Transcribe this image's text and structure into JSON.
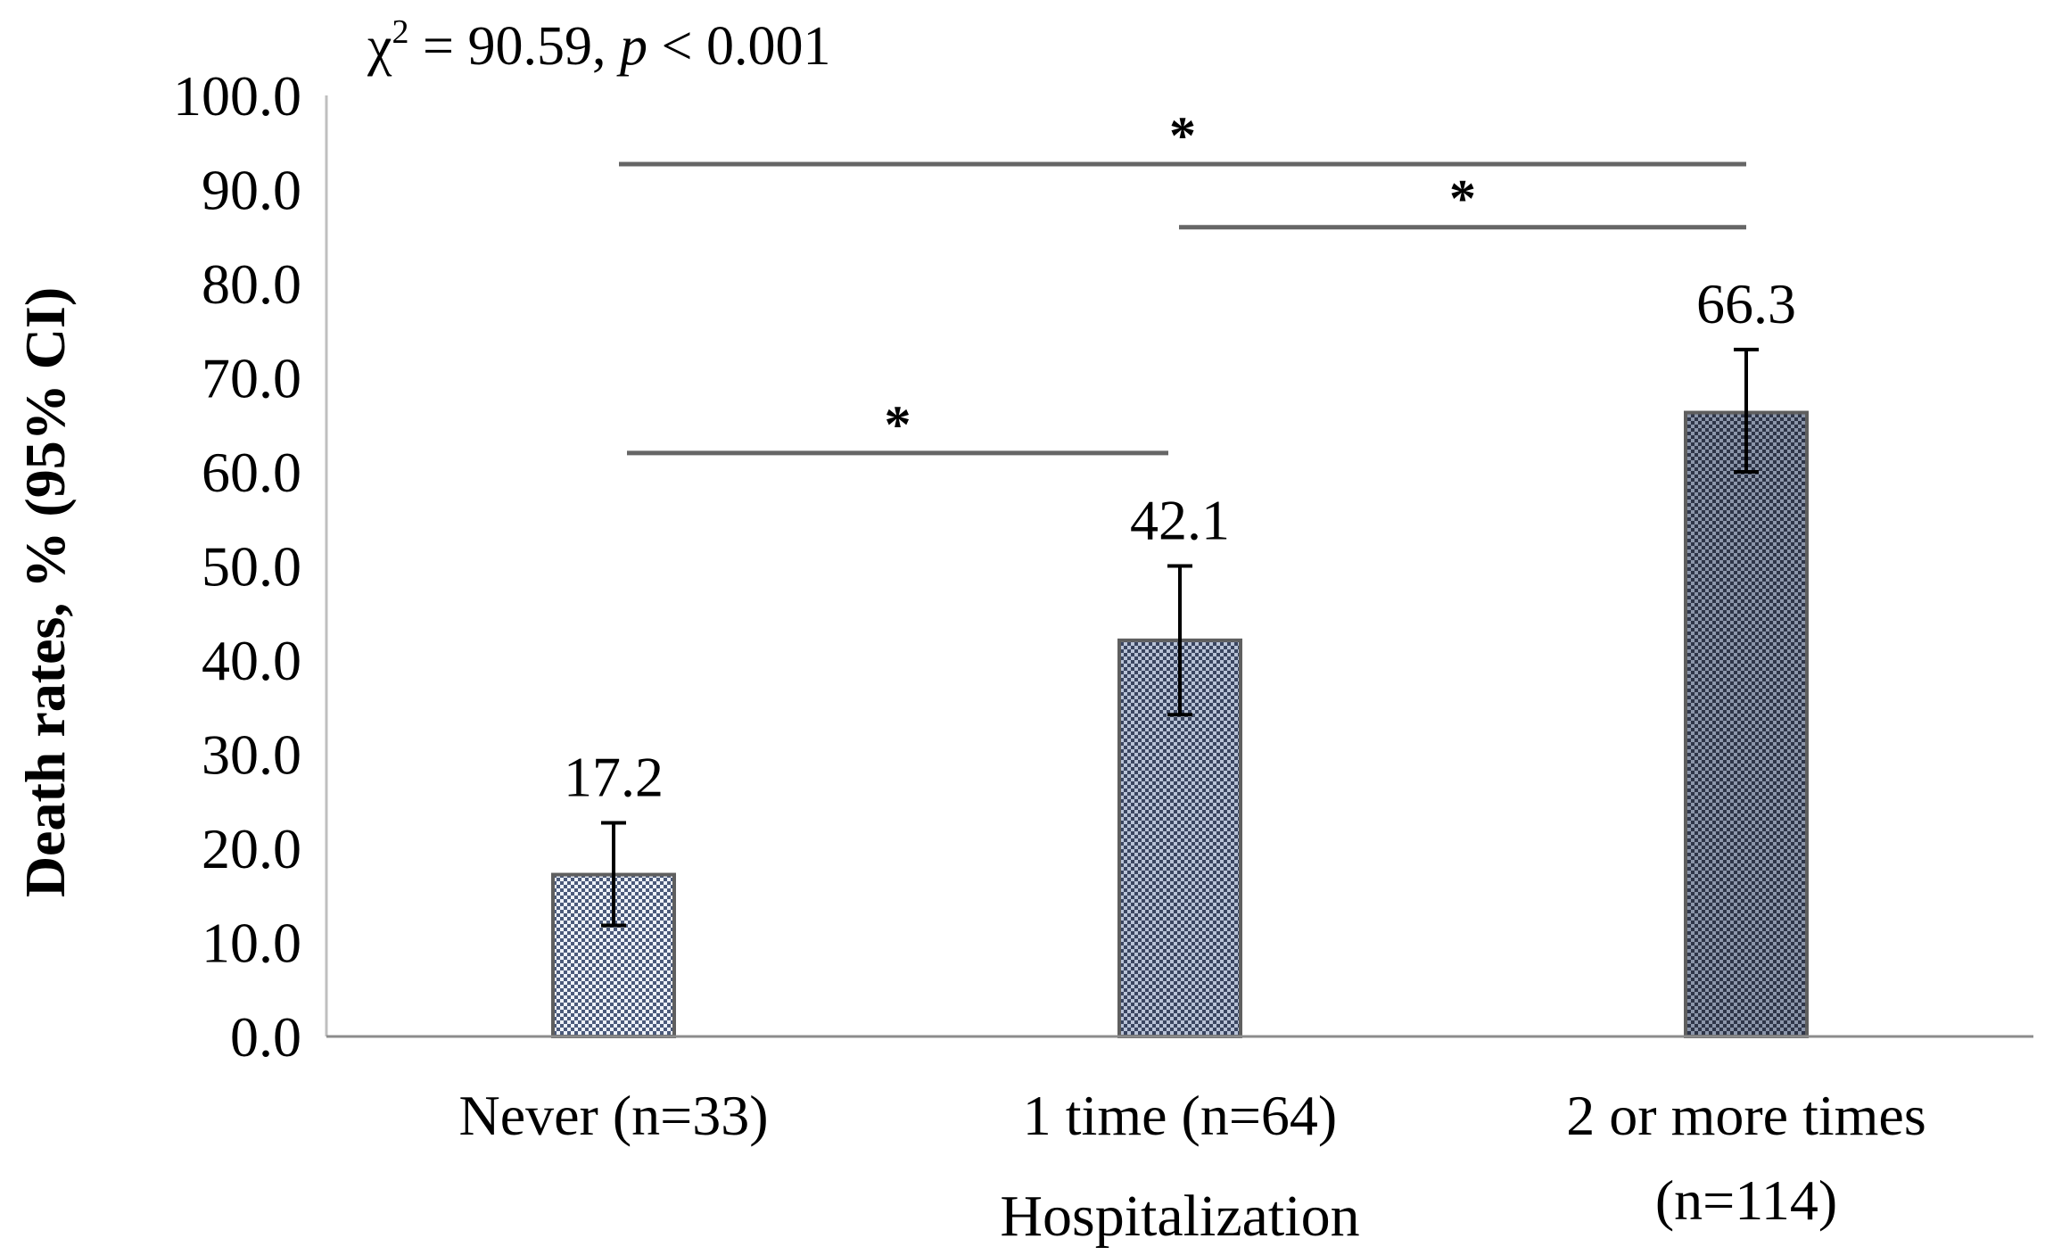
{
  "chart_data": {
    "type": "bar",
    "annotation": {
      "chi": "χ",
      "sup": "2",
      "eq": " = 90.59, ",
      "p": "p",
      "rest": " < 0.001"
    },
    "categories": [
      [
        "Never (n=33)"
      ],
      [
        "1 time (n=64)"
      ],
      [
        "2 or more times",
        "(n=114)"
      ]
    ],
    "values": [
      17.2,
      42.1,
      66.3
    ],
    "value_labels": [
      "17.2",
      "42.1",
      "66.3"
    ],
    "ci_lower": [
      11.8,
      34.2,
      60.0
    ],
    "ci_upper": [
      22.7,
      50.0,
      73.0
    ],
    "xlabel": "Hospitalization",
    "ylabel": "Death rates, % (95% CI)",
    "ylim": [
      0,
      100
    ],
    "yticks": [
      "0.0",
      "10.0",
      "20.0",
      "30.0",
      "40.0",
      "50.0",
      "60.0",
      "70.0",
      "80.0",
      "90.0",
      "100.0"
    ],
    "significance": [
      {
        "from": 0,
        "to": 1,
        "y": 62.0,
        "label": "*"
      },
      {
        "from": 1,
        "to": 2,
        "y": 86.0,
        "label": "*"
      },
      {
        "from": 0,
        "to": 2,
        "y": 92.7,
        "label": "*"
      }
    ],
    "bar_colors": [
      "#c9d3e6",
      "#8593ad",
      "#5a6478"
    ],
    "grid": false,
    "legend": "none"
  }
}
